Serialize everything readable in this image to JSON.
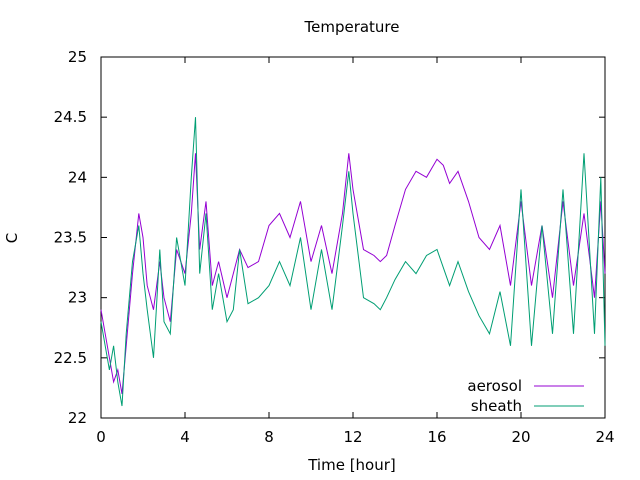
{
  "chart_data": {
    "type": "line",
    "title": "Temperature",
    "xlabel": "Time [hour]",
    "ylabel": "C",
    "xlim": [
      0,
      24
    ],
    "ylim": [
      22,
      25
    ],
    "xticks": [
      0,
      4,
      8,
      12,
      16,
      20,
      24
    ],
    "yticks": [
      22,
      22.5,
      23,
      23.5,
      24,
      24.5,
      25
    ],
    "grid": false,
    "legend_position": "bottom-right",
    "series": [
      {
        "name": "aerosol",
        "color": "#9400d3",
        "x": [
          0,
          0.2,
          0.4,
          0.6,
          0.8,
          1.0,
          1.2,
          1.5,
          1.8,
          2.0,
          2.2,
          2.5,
          2.8,
          3.0,
          3.3,
          3.6,
          4.0,
          4.3,
          4.5,
          4.7,
          5.0,
          5.3,
          5.6,
          6.0,
          6.3,
          6.6,
          7.0,
          7.5,
          8.0,
          8.5,
          9.0,
          9.5,
          10.0,
          10.5,
          11.0,
          11.5,
          11.8,
          12.0,
          12.5,
          13.0,
          13.3,
          13.6,
          14.0,
          14.5,
          15.0,
          15.5,
          16.0,
          16.3,
          16.6,
          17.0,
          17.5,
          18.0,
          18.5,
          19.0,
          19.5,
          20.0,
          20.5,
          21.0,
          21.5,
          22.0,
          22.5,
          23.0,
          23.5,
          23.8,
          24.0
        ],
        "y": [
          22.9,
          22.7,
          22.5,
          22.3,
          22.4,
          22.2,
          22.6,
          23.2,
          23.7,
          23.5,
          23.1,
          22.9,
          23.3,
          23.0,
          22.8,
          23.4,
          23.2,
          23.7,
          24.2,
          23.4,
          23.8,
          23.1,
          23.3,
          23.0,
          23.2,
          23.4,
          23.25,
          23.3,
          23.6,
          23.7,
          23.5,
          23.8,
          23.3,
          23.6,
          23.2,
          23.7,
          24.2,
          23.9,
          23.4,
          23.35,
          23.3,
          23.35,
          23.6,
          23.9,
          24.05,
          24.0,
          24.15,
          24.1,
          23.95,
          24.05,
          23.8,
          23.5,
          23.4,
          23.6,
          23.1,
          23.8,
          23.1,
          23.6,
          23.0,
          23.8,
          23.1,
          23.7,
          23.0,
          23.8,
          23.2
        ]
      },
      {
        "name": "sheath",
        "color": "#009e73",
        "x": [
          0,
          0.2,
          0.4,
          0.6,
          0.8,
          1.0,
          1.2,
          1.5,
          1.8,
          2.0,
          2.2,
          2.5,
          2.8,
          3.0,
          3.3,
          3.6,
          4.0,
          4.3,
          4.5,
          4.7,
          5.0,
          5.3,
          5.6,
          6.0,
          6.3,
          6.6,
          7.0,
          7.5,
          8.0,
          8.5,
          9.0,
          9.5,
          10.0,
          10.5,
          11.0,
          11.5,
          11.8,
          12.0,
          12.5,
          13.0,
          13.3,
          13.6,
          14.0,
          14.5,
          15.0,
          15.5,
          16.0,
          16.3,
          16.6,
          17.0,
          17.5,
          18.0,
          18.5,
          19.0,
          19.5,
          20.0,
          20.5,
          21.0,
          21.5,
          22.0,
          22.5,
          23.0,
          23.5,
          23.8,
          24.0
        ],
        "y": [
          22.8,
          22.6,
          22.4,
          22.6,
          22.3,
          22.1,
          22.7,
          23.3,
          23.6,
          23.2,
          22.9,
          22.5,
          23.4,
          22.8,
          22.7,
          23.5,
          23.1,
          24.0,
          24.5,
          23.2,
          23.7,
          22.9,
          23.2,
          22.8,
          22.9,
          23.4,
          22.95,
          23.0,
          23.1,
          23.3,
          23.1,
          23.5,
          22.9,
          23.4,
          22.9,
          23.6,
          24.05,
          23.7,
          23.0,
          22.95,
          22.9,
          23.0,
          23.15,
          23.3,
          23.2,
          23.35,
          23.4,
          23.25,
          23.1,
          23.3,
          23.05,
          22.85,
          22.7,
          23.05,
          22.6,
          23.9,
          22.6,
          23.6,
          22.7,
          23.9,
          22.7,
          24.2,
          22.7,
          24.0,
          22.6
        ]
      }
    ]
  }
}
